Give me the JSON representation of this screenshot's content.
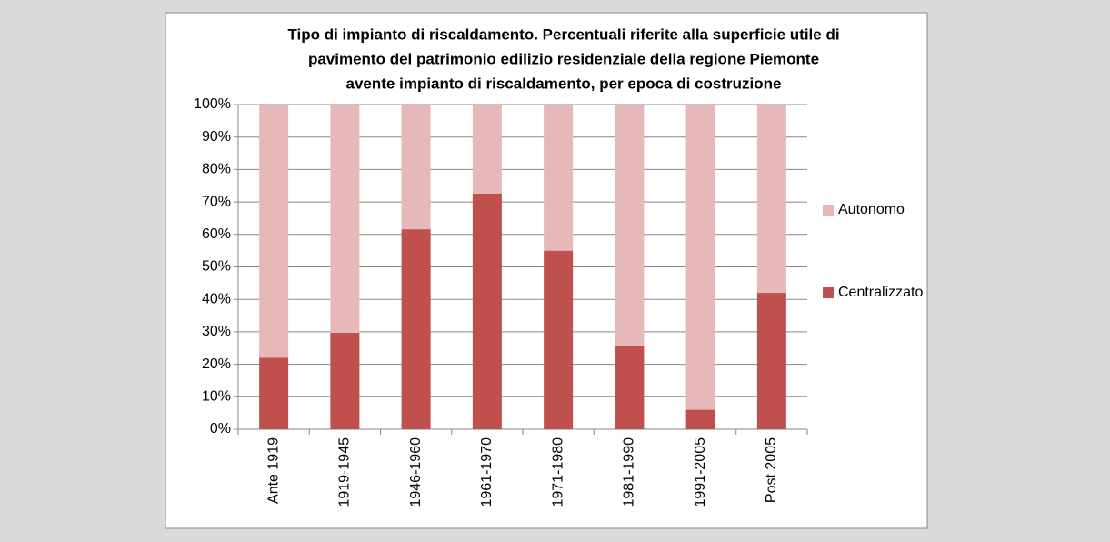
{
  "chart_data": {
    "type": "stacked_bar",
    "title": [
      "Tipo di impianto di riscaldamento. Percentuali riferite alla superficie utile di",
      "pavimento del patrimonio edilizio residenziale della regione Piemonte",
      "avente impianto di riscaldamento, per epoca di costruzione"
    ],
    "categories": [
      "Ante 1919",
      "1919-1945",
      "1946-1960",
      "1961-1970",
      "1971-1980",
      "1981-1990",
      "1991-2005",
      "Post 2005"
    ],
    "series": [
      {
        "name": "Centralizzato",
        "color": "#c0504d",
        "values": [
          22,
          29.7,
          61.6,
          72.6,
          55,
          25.8,
          6,
          42
        ]
      },
      {
        "name": "Autonomo",
        "color": "#e6b9b8",
        "values": [
          78,
          70.3,
          38.4,
          27.4,
          45,
          74.2,
          94,
          58
        ]
      }
    ],
    "ylim": [
      0,
      100
    ],
    "yticks": [
      {
        "value": 0,
        "label": "0%"
      },
      {
        "value": 10,
        "label": "10%"
      },
      {
        "value": 20,
        "label": "20%"
      },
      {
        "value": 30,
        "label": "30%"
      },
      {
        "value": 40,
        "label": "40%"
      },
      {
        "value": 50,
        "label": "50%"
      },
      {
        "value": 60,
        "label": "60%"
      },
      {
        "value": 70,
        "label": "70%"
      },
      {
        "value": 80,
        "label": "80%"
      },
      {
        "value": 90,
        "label": "90%"
      },
      {
        "value": 100,
        "label": "100%"
      }
    ],
    "grid": true,
    "legend": "right"
  }
}
